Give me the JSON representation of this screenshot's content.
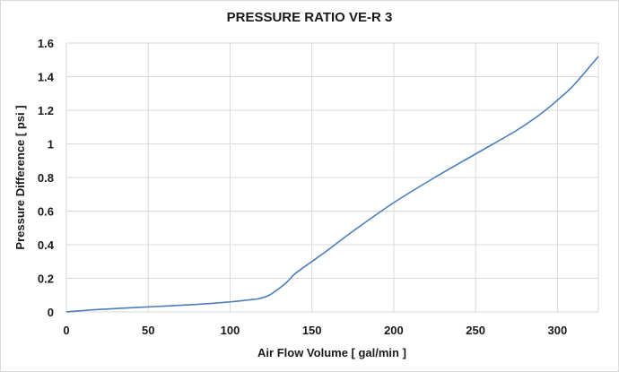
{
  "chart_data": {
    "type": "line",
    "title": "PRESSURE RATIO  VE-R 3",
    "xlabel": "Air Flow Volume  [ gal/min ]",
    "ylabel": "Pressure Difference  [ psi ]",
    "xlim": [
      0,
      325
    ],
    "ylim": [
      0,
      1.6
    ],
    "xticks": [
      0,
      50,
      100,
      150,
      200,
      250,
      300
    ],
    "yticks": [
      0,
      0.2,
      0.4,
      0.6,
      0.8,
      1,
      1.2,
      1.4,
      1.6
    ],
    "xtick_labels": [
      "0",
      "50",
      "100",
      "150",
      "200",
      "250",
      "300"
    ],
    "ytick_labels": [
      "0",
      "0.2",
      "0.4",
      "0.6",
      "0.8",
      "1",
      "1.2",
      "1.4",
      "1.6"
    ],
    "grid": true,
    "series": [
      {
        "name": "VE-R 3",
        "color": "#4a7ebb",
        "x": [
          0,
          20,
          50,
          80,
          100,
          110,
          118,
          124,
          130,
          135,
          140,
          150,
          160,
          175,
          200,
          225,
          250,
          275,
          290,
          300,
          310,
          325
        ],
        "y": [
          0,
          0.015,
          0.03,
          0.045,
          0.06,
          0.07,
          0.08,
          0.1,
          0.14,
          0.18,
          0.23,
          0.3,
          0.37,
          0.48,
          0.65,
          0.8,
          0.94,
          1.08,
          1.18,
          1.26,
          1.35,
          1.52
        ]
      }
    ]
  }
}
